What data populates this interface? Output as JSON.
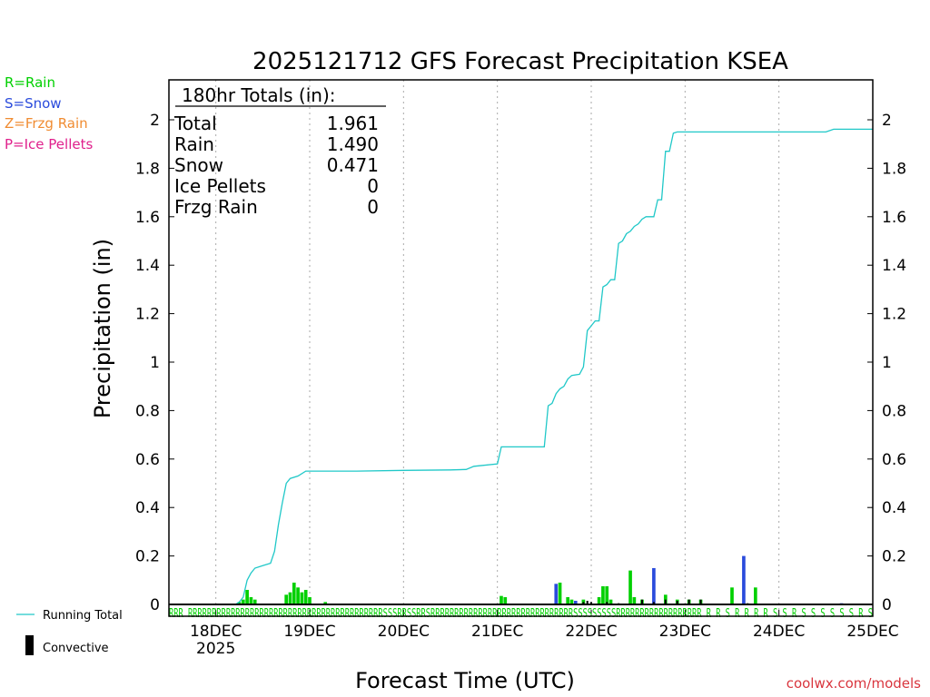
{
  "colors": {
    "rain": "#00d000",
    "snow": "#2a4bdc",
    "frzg": "#f08c32",
    "ice": "#e0208c",
    "running": "#20c8c8",
    "convective": "#000000",
    "footer": "#d9363e"
  },
  "legend": {
    "rain": "R=Rain",
    "snow": "S=Snow",
    "frzg": "Z=Frzg Rain",
    "ice": "P=Ice Pellets"
  },
  "totals": {
    "header": "180hr Totals (in):",
    "rows": [
      {
        "label": "Total",
        "value": "1.961"
      },
      {
        "label": "Rain",
        "value": "1.490"
      },
      {
        "label": "Snow",
        "value": "0.471"
      },
      {
        "label": "Ice Pellets",
        "value": "0"
      },
      {
        "label": "Frzg Rain",
        "value": "0"
      }
    ]
  },
  "bottom_legend": {
    "running": "Running Total",
    "convective": "Convective"
  },
  "footer": "coolwx.com/models",
  "chart_data": {
    "type": "bar+line",
    "title": "2025121712 GFS Forecast Precipitation KSEA",
    "xlabel": "Forecast Time (UTC)",
    "ylabel": "Precipitation (in)",
    "ylim": [
      0,
      2.15
    ],
    "xlim_hours": [
      0,
      180
    ],
    "yticks": [
      0,
      0.2,
      0.4,
      0.6,
      0.8,
      1,
      1.2,
      1.4,
      1.6,
      1.8,
      2
    ],
    "ytick_labels": [
      "0",
      "0.2",
      "0.4",
      "0.6",
      "0.8",
      "1",
      "1.2",
      "1.4",
      "1.6",
      "1.8",
      "2"
    ],
    "xticks": [
      {
        "hour": 12,
        "label": "18DEC",
        "sub": "2025"
      },
      {
        "hour": 36,
        "label": "19DEC"
      },
      {
        "hour": 60,
        "label": "20DEC"
      },
      {
        "hour": 84,
        "label": "21DEC"
      },
      {
        "hour": 108,
        "label": "22DEC"
      },
      {
        "hour": 132,
        "label": "23DEC"
      },
      {
        "hour": 156,
        "label": "24DEC"
      },
      {
        "hour": 180,
        "label": "25DEC"
      }
    ],
    "running_total": [
      [
        0,
        0
      ],
      [
        17,
        0
      ],
      [
        18,
        0.01
      ],
      [
        19,
        0.03
      ],
      [
        20,
        0.1
      ],
      [
        21,
        0.13
      ],
      [
        22,
        0.15
      ],
      [
        24,
        0.16
      ],
      [
        26,
        0.17
      ],
      [
        27,
        0.22
      ],
      [
        28,
        0.33
      ],
      [
        29,
        0.42
      ],
      [
        30,
        0.5
      ],
      [
        31,
        0.52
      ],
      [
        33,
        0.53
      ],
      [
        35,
        0.55
      ],
      [
        48,
        0.55
      ],
      [
        60,
        0.553
      ],
      [
        72,
        0.555
      ],
      [
        76,
        0.557
      ],
      [
        78,
        0.57
      ],
      [
        84,
        0.58
      ],
      [
        85,
        0.65
      ],
      [
        96,
        0.65
      ],
      [
        97,
        0.82
      ],
      [
        98,
        0.83
      ],
      [
        99,
        0.87
      ],
      [
        100,
        0.89
      ],
      [
        101,
        0.9
      ],
      [
        102,
        0.93
      ],
      [
        103,
        0.945
      ],
      [
        105,
        0.95
      ],
      [
        106,
        0.98
      ],
      [
        107,
        1.13
      ],
      [
        108,
        1.15
      ],
      [
        109,
        1.17
      ],
      [
        110,
        1.17
      ],
      [
        111,
        1.31
      ],
      [
        112,
        1.32
      ],
      [
        113,
        1.34
      ],
      [
        114,
        1.34
      ],
      [
        115,
        1.49
      ],
      [
        116,
        1.5
      ],
      [
        117,
        1.53
      ],
      [
        118,
        1.54
      ],
      [
        119,
        1.56
      ],
      [
        120,
        1.57
      ],
      [
        121,
        1.59
      ],
      [
        122,
        1.6
      ],
      [
        123,
        1.6
      ],
      [
        124,
        1.6
      ],
      [
        125,
        1.67
      ],
      [
        126,
        1.67
      ],
      [
        127,
        1.87
      ],
      [
        128,
        1.87
      ],
      [
        129,
        1.945
      ],
      [
        130,
        1.95
      ],
      [
        168,
        1.95
      ],
      [
        170,
        1.961
      ],
      [
        180,
        1.961
      ]
    ],
    "bars": [
      {
        "hour": 18,
        "value": 0.01,
        "type": "rain"
      },
      {
        "hour": 19,
        "value": 0.02,
        "type": "rain"
      },
      {
        "hour": 20,
        "value": 0.06,
        "type": "rain"
      },
      {
        "hour": 21,
        "value": 0.03,
        "type": "rain"
      },
      {
        "hour": 22,
        "value": 0.02,
        "type": "rain"
      },
      {
        "hour": 30,
        "value": 0.04,
        "type": "rain"
      },
      {
        "hour": 31,
        "value": 0.05,
        "type": "rain"
      },
      {
        "hour": 32,
        "value": 0.09,
        "type": "rain"
      },
      {
        "hour": 33,
        "value": 0.07,
        "type": "rain"
      },
      {
        "hour": 34,
        "value": 0.05,
        "type": "rain"
      },
      {
        "hour": 35,
        "value": 0.06,
        "type": "rain"
      },
      {
        "hour": 36,
        "value": 0.03,
        "type": "rain"
      },
      {
        "hour": 40,
        "value": 0.01,
        "type": "rain"
      },
      {
        "hour": 85,
        "value": 0.035,
        "type": "rain"
      },
      {
        "hour": 86,
        "value": 0.03,
        "type": "rain"
      },
      {
        "hour": 99,
        "value": 0.085,
        "type": "snow"
      },
      {
        "hour": 100,
        "value": 0.09,
        "type": "rain"
      },
      {
        "hour": 102,
        "value": 0.03,
        "type": "rain"
      },
      {
        "hour": 103,
        "value": 0.02,
        "type": "rain"
      },
      {
        "hour": 104,
        "value": 0.015,
        "type": "snow"
      },
      {
        "hour": 106,
        "value": 0.02,
        "type": "rain"
      },
      {
        "hour": 110,
        "value": 0.03,
        "type": "rain"
      },
      {
        "hour": 111,
        "value": 0.075,
        "type": "rain"
      },
      {
        "hour": 112,
        "value": 0.075,
        "type": "rain"
      },
      {
        "hour": 113,
        "value": 0.02,
        "type": "rain"
      },
      {
        "hour": 118,
        "value": 0.14,
        "type": "rain"
      },
      {
        "hour": 119,
        "value": 0.03,
        "type": "rain"
      },
      {
        "hour": 121,
        "value": 0.02,
        "type": "rain"
      },
      {
        "hour": 124,
        "value": 0.15,
        "type": "snow"
      },
      {
        "hour": 127,
        "value": 0.04,
        "type": "rain"
      },
      {
        "hour": 130,
        "value": 0.02,
        "type": "rain"
      },
      {
        "hour": 133,
        "value": 0.02,
        "type": "rain"
      },
      {
        "hour": 136,
        "value": 0.02,
        "type": "rain"
      },
      {
        "hour": 144,
        "value": 0.07,
        "type": "rain"
      },
      {
        "hour": 147,
        "value": 0.2,
        "type": "snow"
      },
      {
        "hour": 150,
        "value": 0.07,
        "type": "rain"
      },
      {
        "hour": 172,
        "value": 0.005,
        "type": "snow"
      }
    ],
    "convective": [
      {
        "hour": 106,
        "value": 0.01
      },
      {
        "hour": 107,
        "value": 0.015
      },
      {
        "hour": 108,
        "value": 0.01
      },
      {
        "hour": 112,
        "value": 0.01
      },
      {
        "hour": 115,
        "value": 0.005
      },
      {
        "hour": 121,
        "value": 0.02
      },
      {
        "hour": 124,
        "value": 0.01
      },
      {
        "hour": 127,
        "value": 0.02
      },
      {
        "hour": 130,
        "value": 0.015
      },
      {
        "hour": 133,
        "value": 0.02
      },
      {
        "hour": 136,
        "value": 0.02
      },
      {
        "hour": 148,
        "value": 0.005
      }
    ],
    "ptype_row": "RRR  RRRRRRRRRRRRRRRRRRRRRRRRRRRRRRRRRRRRRRRRRSSSRRSSRRSRRRRRRRRRRRRRRRRRRRRRRRRRRRRRRSSSSSSSSSRRRRRRRRRRRRRRRRRR R R S R R R R S S R S S S  S S S R S"
  }
}
